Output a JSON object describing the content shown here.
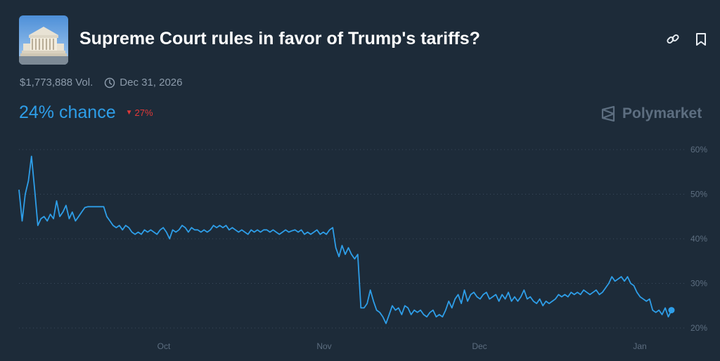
{
  "header": {
    "title": "Supreme Court rules in favor of Trump's tariffs?",
    "volume": "$1,773,888 Vol.",
    "end_date": "Dec 31, 2026",
    "chance": "24% chance",
    "change": "27%",
    "brand": "Polymarket",
    "icons": {
      "link": "link-icon",
      "bookmark": "bookmark-icon",
      "clock": "clock-icon",
      "brand": "polymarket-logo-icon"
    }
  },
  "colors": {
    "background": "#1d2b39",
    "line": "#2e9ee8",
    "grid": "#3a4a5c",
    "axis_text": "#5d6e80",
    "down": "#e23939"
  },
  "chart_data": {
    "type": "line",
    "title": "",
    "xlabel": "",
    "ylabel": "",
    "x_ticks": [
      "Oct",
      "Nov",
      "Dec",
      "Jan"
    ],
    "y_ticks": [
      "20%",
      "30%",
      "40%",
      "50%",
      "60%"
    ],
    "ylim": [
      20,
      60
    ],
    "grid": true,
    "series": [
      {
        "name": "",
        "points": [
          [
            0,
            51
          ],
          [
            1,
            44
          ],
          [
            2,
            50
          ],
          [
            3,
            53
          ],
          [
            4,
            58.5
          ],
          [
            5,
            51
          ],
          [
            6,
            43
          ],
          [
            7,
            44.5
          ],
          [
            8,
            45
          ],
          [
            9,
            44
          ],
          [
            10,
            45.5
          ],
          [
            11,
            44.5
          ],
          [
            12,
            48.5
          ],
          [
            13,
            45
          ],
          [
            14,
            46
          ],
          [
            15,
            47.5
          ],
          [
            16,
            44.5
          ],
          [
            17,
            46
          ],
          [
            18,
            44
          ],
          [
            19,
            45
          ],
          [
            20,
            46
          ],
          [
            21,
            47
          ],
          [
            22,
            47.2
          ],
          [
            23,
            47.2
          ],
          [
            24,
            47.2
          ],
          [
            25,
            47.2
          ],
          [
            26,
            47.2
          ],
          [
            27,
            47.2
          ],
          [
            28,
            45
          ],
          [
            29,
            44
          ],
          [
            30,
            43
          ],
          [
            31,
            42.5
          ],
          [
            32,
            43
          ],
          [
            33,
            42
          ],
          [
            34,
            43
          ],
          [
            35,
            42.5
          ],
          [
            36,
            41.5
          ],
          [
            37,
            41
          ],
          [
            38,
            41.5
          ],
          [
            39,
            41
          ],
          [
            40,
            42
          ],
          [
            41,
            41.5
          ],
          [
            42,
            42
          ],
          [
            43,
            41.5
          ],
          [
            44,
            41
          ],
          [
            45,
            42
          ],
          [
            46,
            42.5
          ],
          [
            47,
            41.5
          ],
          [
            48,
            40
          ],
          [
            49,
            42
          ],
          [
            50,
            41.5
          ],
          [
            51,
            42
          ],
          [
            52,
            43
          ],
          [
            53,
            42.5
          ],
          [
            54,
            41.5
          ],
          [
            55,
            42.5
          ],
          [
            56,
            42
          ],
          [
            57,
            42
          ],
          [
            58,
            41.5
          ],
          [
            59,
            42
          ],
          [
            60,
            41.5
          ],
          [
            61,
            42
          ],
          [
            62,
            43
          ],
          [
            63,
            42.5
          ],
          [
            64,
            43
          ],
          [
            65,
            42.5
          ],
          [
            66,
            43
          ],
          [
            67,
            42
          ],
          [
            68,
            42.5
          ],
          [
            69,
            42
          ],
          [
            70,
            41.5
          ],
          [
            71,
            42
          ],
          [
            72,
            41.5
          ],
          [
            73,
            41
          ],
          [
            74,
            42
          ],
          [
            75,
            41.5
          ],
          [
            76,
            42
          ],
          [
            77,
            41.5
          ],
          [
            78,
            42
          ],
          [
            79,
            42
          ],
          [
            80,
            41.5
          ],
          [
            81,
            42
          ],
          [
            82,
            41.5
          ],
          [
            83,
            41
          ],
          [
            84,
            41.5
          ],
          [
            85,
            42
          ],
          [
            86,
            41.5
          ],
          [
            87,
            41.8
          ],
          [
            88,
            42
          ],
          [
            89,
            41.5
          ],
          [
            90,
            42
          ],
          [
            91,
            41
          ],
          [
            92,
            41.5
          ],
          [
            93,
            41
          ],
          [
            94,
            41.5
          ],
          [
            95,
            42
          ],
          [
            96,
            41
          ],
          [
            97,
            41.5
          ],
          [
            98,
            41
          ],
          [
            99,
            42
          ],
          [
            100,
            42.5
          ],
          [
            101,
            38
          ],
          [
            102,
            36
          ],
          [
            103,
            38.5
          ],
          [
            104,
            36.5
          ],
          [
            105,
            38
          ],
          [
            106,
            36.5
          ],
          [
            107,
            35.5
          ],
          [
            108,
            36.5
          ],
          [
            109,
            24.5
          ],
          [
            110,
            24.5
          ],
          [
            111,
            25.5
          ],
          [
            112,
            28.5
          ],
          [
            113,
            26
          ],
          [
            114,
            24
          ],
          [
            115,
            23.5
          ],
          [
            116,
            22.5
          ],
          [
            117,
            21
          ],
          [
            118,
            23
          ],
          [
            119,
            25
          ],
          [
            120,
            24
          ],
          [
            121,
            24.5
          ],
          [
            122,
            23
          ],
          [
            123,
            25
          ],
          [
            124,
            24.5
          ],
          [
            125,
            23
          ],
          [
            126,
            24
          ],
          [
            127,
            23.5
          ],
          [
            128,
            24
          ],
          [
            129,
            23
          ],
          [
            130,
            22.5
          ],
          [
            131,
            23.5
          ],
          [
            132,
            24
          ],
          [
            133,
            22.5
          ],
          [
            134,
            23
          ],
          [
            135,
            22.5
          ],
          [
            136,
            24
          ],
          [
            137,
            26
          ],
          [
            138,
            24.5
          ],
          [
            139,
            26.5
          ],
          [
            140,
            27.5
          ],
          [
            141,
            25.5
          ],
          [
            142,
            28.5
          ],
          [
            143,
            26
          ],
          [
            144,
            27.5
          ],
          [
            145,
            28
          ],
          [
            146,
            27
          ],
          [
            147,
            26.5
          ],
          [
            148,
            27.5
          ],
          [
            149,
            28
          ],
          [
            150,
            26.5
          ],
          [
            151,
            27
          ],
          [
            152,
            27.5
          ],
          [
            153,
            26
          ],
          [
            154,
            27.5
          ],
          [
            155,
            26.5
          ],
          [
            156,
            28
          ],
          [
            157,
            26
          ],
          [
            158,
            27
          ],
          [
            159,
            26
          ],
          [
            160,
            27
          ],
          [
            161,
            28.5
          ],
          [
            162,
            26.5
          ],
          [
            163,
            27
          ],
          [
            164,
            26
          ],
          [
            165,
            25.5
          ],
          [
            166,
            26.5
          ],
          [
            167,
            25
          ],
          [
            168,
            26
          ],
          [
            169,
            25.5
          ],
          [
            170,
            26
          ],
          [
            171,
            26.5
          ],
          [
            172,
            27.5
          ],
          [
            173,
            27
          ],
          [
            174,
            27.5
          ],
          [
            175,
            27
          ],
          [
            176,
            28
          ],
          [
            177,
            27.5
          ],
          [
            178,
            28
          ],
          [
            179,
            27.5
          ],
          [
            180,
            28.5
          ],
          [
            181,
            28
          ],
          [
            182,
            27.5
          ],
          [
            183,
            28
          ],
          [
            184,
            28.5
          ],
          [
            185,
            27.5
          ],
          [
            186,
            28
          ],
          [
            187,
            29
          ],
          [
            188,
            30
          ],
          [
            189,
            31.5
          ],
          [
            190,
            30.5
          ],
          [
            191,
            31
          ],
          [
            192,
            31.5
          ],
          [
            193,
            30.5
          ],
          [
            194,
            31.5
          ],
          [
            195,
            30
          ],
          [
            196,
            29.5
          ],
          [
            197,
            28
          ],
          [
            198,
            27
          ],
          [
            199,
            26.5
          ],
          [
            200,
            26
          ],
          [
            201,
            26.5
          ],
          [
            202,
            24
          ],
          [
            203,
            23.5
          ],
          [
            204,
            24
          ],
          [
            205,
            23
          ],
          [
            206,
            24.5
          ],
          [
            207,
            22.5
          ],
          [
            208,
            24
          ]
        ]
      }
    ]
  }
}
